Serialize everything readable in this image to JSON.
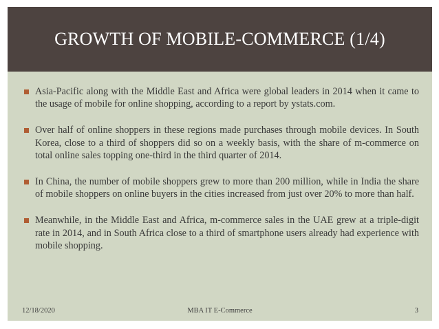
{
  "slide": {
    "title": "GROWTH OF MOBILE-COMMERCE (1/4)",
    "colors": {
      "title_bar": "#4d4340",
      "background": "#d1d7c4",
      "bullet": "#b05d33",
      "text": "#3a3a3a"
    },
    "bullet_icon": "square-bullet-icon",
    "bullets": [
      "Asia-Pacific along with the Middle East and Africa were global leaders in 2014 when it came to the usage of mobile for online shopping, according to a report by ystats.com.",
      "Over half of online shoppers in these regions made purchases through mobile devices. In South Korea,  close to a third of shoppers did so on a weekly basis, with the share of m-commerce on total online sales topping one-third in the third quarter of 2014.",
      "In China, the number of mobile shoppers grew to more than 200 million, while in India the share of mobile shoppers on online buyers in the cities increased from just over 20% to more than half.",
      "Meanwhile, in the Middle East and Africa, m-commerce sales in the UAE grew at a triple-digit rate in 2014, and in South Africa close to a third of smartphone users already had experience with mobile shopping."
    ],
    "footer": {
      "date": "12/18/2020",
      "center": "MBA IT E-Commerce",
      "page": "3"
    }
  }
}
